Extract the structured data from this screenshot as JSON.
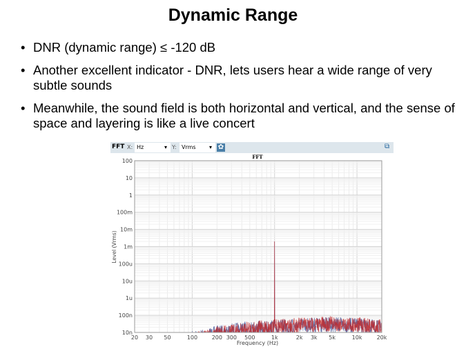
{
  "slide": {
    "title": "Dynamic Range",
    "bullets": [
      "DNR (dynamic range) ≤ -120 dB",
      "Another excellent indicator - DNR, lets users hear a wide range of very subtle sounds",
      "Meanwhile, the sound field is both horizontal and vertical, and the sense of space and layering is like a live concert"
    ],
    "bullet_glyph": "•"
  },
  "toolbar": {
    "label": "FFT",
    "x_label": "X:",
    "x_value": "Hz",
    "y_label": "Y:",
    "y_value": "Vrms",
    "dropdown_glyph": "▾",
    "settings_icon": "gear-icon",
    "popout_icon": "popout-icon",
    "gear_glyph": "✿",
    "popout_glyph": "⧉"
  },
  "chart_data": {
    "type": "line",
    "title": "FFT",
    "xlabel": "Frequency (Hz)",
    "ylabel": "Level (Vrms)",
    "xscale": "log",
    "yscale": "log",
    "xlim": [
      20,
      20000
    ],
    "ylim": [
      1e-08,
      100
    ],
    "grid": true,
    "x_ticks": [
      20,
      30,
      50,
      100,
      200,
      300,
      500,
      1000,
      2000,
      3000,
      5000,
      10000,
      20000
    ],
    "x_tick_labels": [
      "20",
      "30",
      "50",
      "100",
      "200",
      "300",
      "500",
      "1k",
      "2k",
      "3k",
      "5k",
      "10k",
      "20k"
    ],
    "y_ticks": [
      100,
      10,
      1,
      0.1,
      0.01,
      0.001,
      0.0001,
      1e-05,
      1e-06,
      1e-07,
      1e-08
    ],
    "y_tick_labels": [
      "100",
      "10",
      "1",
      "100m",
      "10m",
      "1m",
      "100u",
      "10u",
      "1u",
      "100n",
      "10n"
    ],
    "series": [
      {
        "color": "#4a5a9a",
        "points": [
          [
            100,
            1.2e-08
          ],
          [
            150,
            1.8e-08
          ],
          [
            200,
            2.5e-08
          ],
          [
            300,
            3.5e-08
          ],
          [
            500,
            4.5e-08
          ],
          [
            800,
            5e-08
          ],
          [
            1000,
            0.002
          ],
          [
            1500,
            6e-08
          ],
          [
            2000,
            7e-08
          ],
          [
            3000,
            7.5e-08
          ],
          [
            5000,
            8e-08
          ],
          [
            10000,
            7e-08
          ],
          [
            20000,
            5e-08
          ]
        ]
      },
      {
        "color": "#c0282c",
        "points": [
          [
            100,
            1e-08
          ],
          [
            150,
            1.5e-08
          ],
          [
            200,
            2.2e-08
          ],
          [
            300,
            3e-08
          ],
          [
            500,
            4.5e-08
          ],
          [
            800,
            5.5e-08
          ],
          [
            1000,
            0.002
          ],
          [
            1500,
            6.5e-08
          ],
          [
            2000,
            7.5e-08
          ],
          [
            3000,
            8e-08
          ],
          [
            5000,
            9e-08
          ],
          [
            10000,
            8e-08
          ],
          [
            20000,
            5.5e-08
          ]
        ]
      }
    ]
  }
}
